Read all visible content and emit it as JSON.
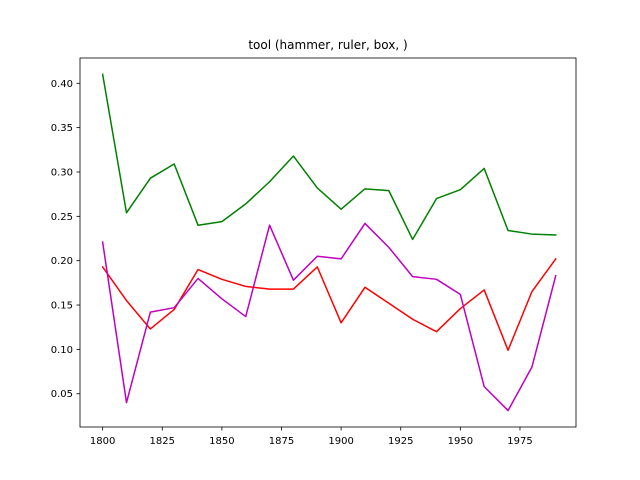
{
  "chart_data": {
    "type": "line",
    "title": "tool (hammer, ruler, box, )",
    "xlabel": "",
    "ylabel": "",
    "xlim": [
      1790.5,
      1998.5
    ],
    "ylim": [
      0.0125,
      0.4285
    ],
    "x_ticks": [
      1800,
      1825,
      1850,
      1875,
      1900,
      1925,
      1950,
      1975
    ],
    "x_tick_labels": [
      "1800",
      "1825",
      "1850",
      "1875",
      "1900",
      "1925",
      "1950",
      "1975"
    ],
    "y_ticks": [
      0.05,
      0.1,
      0.15,
      0.2,
      0.25,
      0.3,
      0.35,
      0.4
    ],
    "y_tick_labels": [
      "0.05",
      "0.10",
      "0.15",
      "0.20",
      "0.25",
      "0.30",
      "0.35",
      "0.40"
    ],
    "grid": false,
    "legend": "none",
    "x": [
      1800,
      1810,
      1820,
      1830,
      1840,
      1850,
      1860,
      1870,
      1880,
      1890,
      1900,
      1910,
      1920,
      1930,
      1940,
      1950,
      1960,
      1970,
      1980,
      1990
    ],
    "series": [
      {
        "color": "#008000",
        "values": [
          0.41,
          0.254,
          0.293,
          0.309,
          0.24,
          0.244,
          0.264,
          0.289,
          0.318,
          0.282,
          0.258,
          0.281,
          0.279,
          0.224,
          0.27,
          0.28,
          0.304,
          0.234,
          0.23,
          0.229
        ]
      },
      {
        "color": "#ff0000",
        "values": [
          0.193,
          0.155,
          0.123,
          0.145,
          0.19,
          0.179,
          0.171,
          0.168,
          0.168,
          0.193,
          0.13,
          0.17,
          0.152,
          0.134,
          0.12,
          0.146,
          0.167,
          0.099,
          0.165,
          0.202
        ]
      },
      {
        "color": "#bf00bf",
        "values": [
          0.221,
          0.04,
          0.142,
          0.147,
          0.18,
          0.157,
          0.137,
          0.24,
          0.178,
          0.205,
          0.202,
          0.242,
          0.215,
          0.182,
          0.179,
          0.162,
          0.058,
          0.031,
          0.08,
          0.183
        ]
      }
    ]
  }
}
